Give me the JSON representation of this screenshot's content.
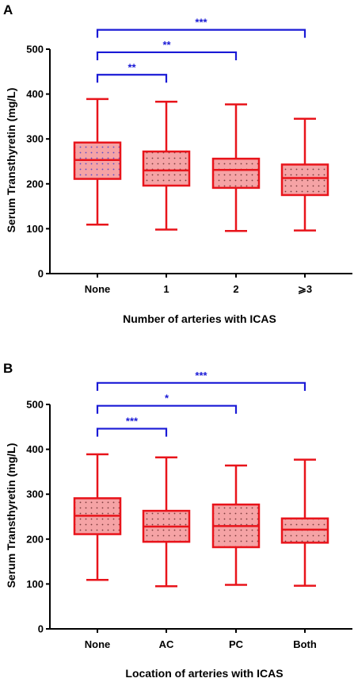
{
  "colors": {
    "box_stroke": "#e8141b",
    "box_fill": "#f5a3a5",
    "box_fill_first": "#c9b6ee",
    "dot": "#7a3a3a",
    "bracket": "#1a1ad6",
    "axis": "#000000"
  },
  "chart_data": [
    {
      "type": "box",
      "panel_label": "A",
      "xlabel": "Number of arteries with ICAS",
      "ylabel": "Serum Transthyretin (mg/L)",
      "ylim": [
        0,
        500
      ],
      "yticks": [
        0,
        100,
        200,
        300,
        400,
        500
      ],
      "categories": [
        "None",
        "1",
        "2",
        "⩾3"
      ],
      "boxes": [
        {
          "min": 109,
          "q1": 211,
          "median": 253,
          "q3": 292,
          "max": 389
        },
        {
          "min": 98,
          "q1": 196,
          "median": 230,
          "q3": 272,
          "max": 383
        },
        {
          "min": 95,
          "q1": 191,
          "median": 231,
          "q3": 256,
          "max": 377
        },
        {
          "min": 96,
          "q1": 175,
          "median": 213,
          "q3": 243,
          "max": 345
        }
      ],
      "comparisons": [
        {
          "from": 0,
          "to": 1,
          "label": "**",
          "level": 443
        },
        {
          "from": 0,
          "to": 2,
          "label": "**",
          "level": 493
        },
        {
          "from": 0,
          "to": 3,
          "label": "***",
          "level": 543
        }
      ]
    },
    {
      "type": "box",
      "panel_label": "B",
      "xlabel": "Location of arteries with ICAS",
      "ylabel": "Serum Transthyretin (mg/L)",
      "ylim": [
        0,
        500
      ],
      "yticks": [
        0,
        100,
        200,
        300,
        400,
        500
      ],
      "categories": [
        "None",
        "AC",
        "PC",
        "Both"
      ],
      "boxes": [
        {
          "min": 109,
          "q1": 211,
          "median": 252,
          "q3": 291,
          "max": 389
        },
        {
          "min": 95,
          "q1": 194,
          "median": 228,
          "q3": 263,
          "max": 382
        },
        {
          "min": 98,
          "q1": 182,
          "median": 229,
          "q3": 277,
          "max": 364
        },
        {
          "min": 96,
          "q1": 192,
          "median": 221,
          "q3": 246,
          "max": 377
        }
      ],
      "comparisons": [
        {
          "from": 0,
          "to": 1,
          "label": "***",
          "level": 446
        },
        {
          "from": 0,
          "to": 2,
          "label": "*",
          "level": 497
        },
        {
          "from": 0,
          "to": 3,
          "label": "***",
          "level": 548
        }
      ]
    }
  ]
}
